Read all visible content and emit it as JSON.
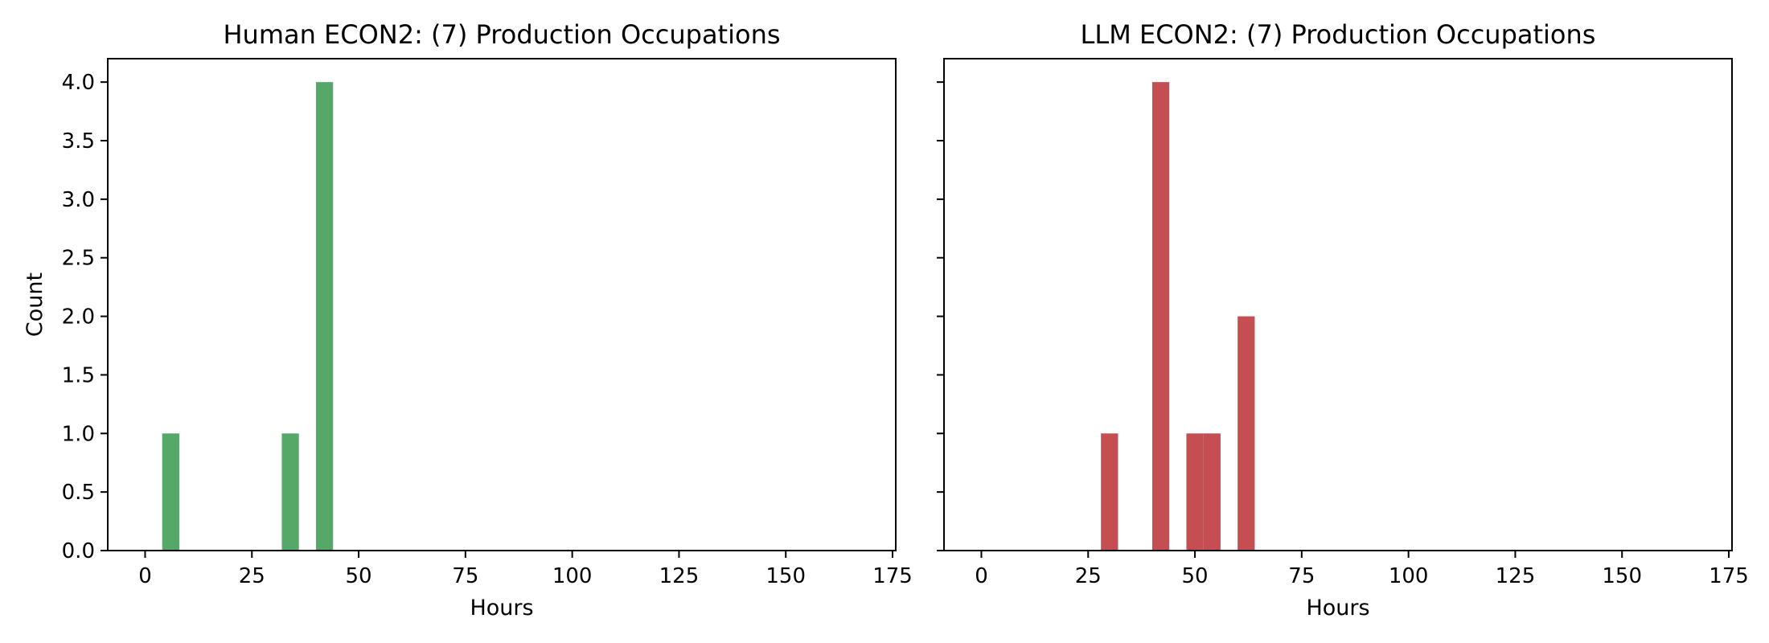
{
  "chart_data": [
    {
      "type": "bar",
      "title": "Human ECON2: (7) Production Occupations",
      "xlabel": "Hours",
      "ylabel": "Count",
      "xlim": [
        -8.75,
        175.75
      ],
      "ylim": [
        0,
        4.2
      ],
      "xticks": [
        "0",
        "25",
        "50",
        "75",
        "100",
        "125",
        "150",
        "175"
      ],
      "yticks": [
        "0.0",
        "0.5",
        "1.0",
        "1.5",
        "2.0",
        "2.5",
        "3.0",
        "3.5",
        "4.0"
      ],
      "bin_width": 4,
      "color": "#55a868",
      "bars": [
        {
          "x": 4,
          "value": 1
        },
        {
          "x": 32,
          "value": 1
        },
        {
          "x": 40,
          "value": 4
        }
      ],
      "grid": false
    },
    {
      "type": "bar",
      "title": "LLM ECON2: (7) Production Occupations",
      "xlabel": "Hours",
      "ylabel": "",
      "xlim": [
        -8.75,
        175.75
      ],
      "ylim": [
        0,
        4.2
      ],
      "xticks": [
        "0",
        "25",
        "50",
        "75",
        "100",
        "125",
        "150",
        "175"
      ],
      "yticks": [],
      "bin_width": 4,
      "color": "#c44e52",
      "bars": [
        {
          "x": 28,
          "value": 1
        },
        {
          "x": 40,
          "value": 4
        },
        {
          "x": 48,
          "value": 1
        },
        {
          "x": 52,
          "value": 1
        },
        {
          "x": 60,
          "value": 2
        }
      ],
      "grid": false
    }
  ]
}
